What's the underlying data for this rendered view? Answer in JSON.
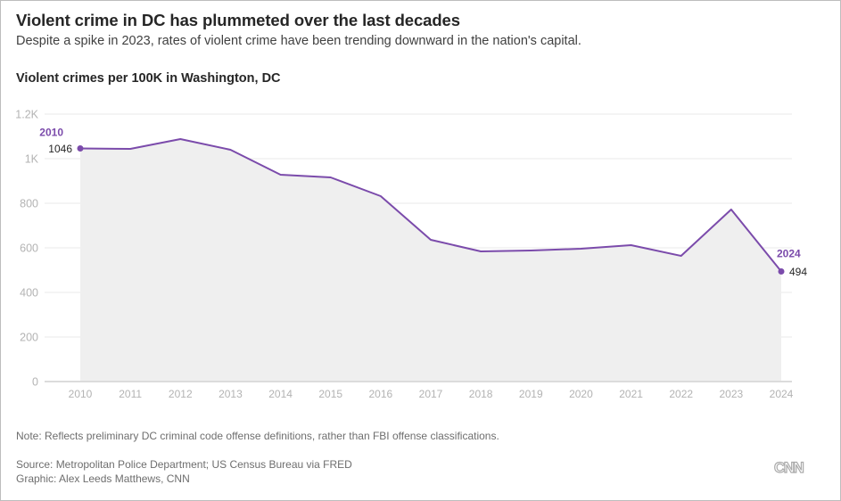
{
  "header": {
    "title": "Violent crime in DC has plummeted over the last decades",
    "subtitle": "Despite a spike in 2023, rates of violent crime have been trending downward in the nation's capital.",
    "chart_label": "Violent crimes per 100K in Washington, DC"
  },
  "footer": {
    "note": "Note: Reflects preliminary DC criminal code offense definitions, rather than FBI offense classifications.",
    "source": "Source: Metropolitan Police Department; US Census Bureau via FRED",
    "graphic": "Graphic: Alex Leeds Matthews, CNN",
    "logo": "CNN"
  },
  "colors": {
    "line": "#7b4bab",
    "area": "#efefef",
    "grid": "#f0f0f0",
    "axis_text": "#b3b3b3",
    "label_dark": "#262626"
  },
  "chart_data": {
    "type": "area",
    "title": "Violent crimes per 100K in Washington, DC",
    "xlabel": "",
    "ylabel": "",
    "x": [
      2010,
      2011,
      2012,
      2013,
      2014,
      2015,
      2016,
      2017,
      2018,
      2019,
      2020,
      2021,
      2022,
      2023,
      2024
    ],
    "series": [
      {
        "name": "Violent crimes per 100K",
        "values": [
          1046,
          1044,
          1088,
          1040,
          928,
          916,
          832,
          636,
          584,
          588,
          596,
          612,
          564,
          772,
          494
        ]
      }
    ],
    "ylim": [
      0,
      1200
    ],
    "yticks": [
      0,
      200,
      400,
      600,
      800,
      1000,
      1200
    ],
    "ytick_labels": [
      "0",
      "200",
      "400",
      "600",
      "800",
      "1K",
      "1.2K"
    ],
    "xtick_labels": [
      "2010",
      "2011",
      "2012",
      "2013",
      "2014",
      "2015",
      "2016",
      "2017",
      "2018",
      "2019",
      "2020",
      "2021",
      "2022",
      "2023",
      "2024"
    ],
    "grid": true,
    "annotations": [
      {
        "x": 2010,
        "year_label": "2010",
        "value_label": "1046"
      },
      {
        "x": 2024,
        "year_label": "2024",
        "value_label": "494"
      }
    ]
  }
}
